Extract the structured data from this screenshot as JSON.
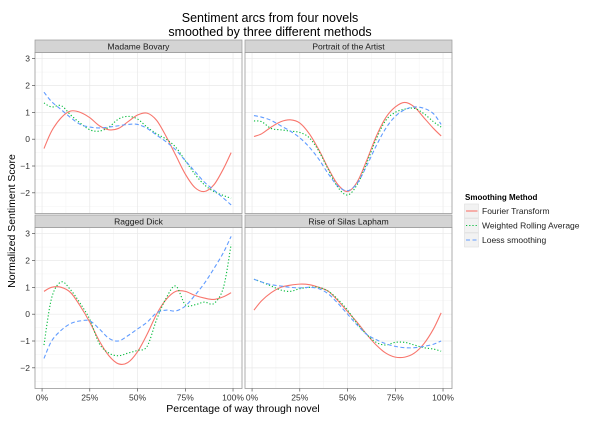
{
  "chart_data": {
    "type": "line",
    "title": [
      "Sentiment arcs from four novels",
      "smoothed by three different methods"
    ],
    "xlabel": "Percentage of way through novel",
    "ylabel": "Normalized Sentiment Score",
    "xlim": [
      -3.7,
      104.7
    ],
    "ylim": [
      -2.77,
      3.23
    ],
    "x_ticks": [
      0,
      25,
      50,
      75,
      100
    ],
    "x_tick_labels": [
      "0%",
      "25%",
      "50%",
      "75%",
      "100%"
    ],
    "y_ticks": [
      -2,
      -1,
      0,
      1,
      2,
      3
    ],
    "y_tick_labels": [
      "−2",
      "−1",
      "0",
      "1",
      "2",
      "3"
    ],
    "grid": true,
    "legend": {
      "title": "Smoothing Method",
      "placement": "right",
      "entries": [
        {
          "name": "Fourier Transform",
          "color": "#F8766D",
          "style": "solid"
        },
        {
          "name": "Weighted Rolling Average",
          "color": "#00BA38",
          "style": "dotted"
        },
        {
          "name": "Loess smoothing",
          "color": "#619CFF",
          "style": "dashed"
        }
      ]
    },
    "x": [
      1,
      5,
      10,
      15,
      20,
      25,
      30,
      35,
      40,
      45,
      50,
      55,
      60,
      65,
      70,
      75,
      80,
      85,
      90,
      95,
      99
    ],
    "panels": [
      {
        "title": "Madame Bovary",
        "series": [
          {
            "name": "Fourier Transform",
            "values": [
              -0.35,
              0.3,
              0.8,
              1.05,
              1.0,
              0.8,
              0.5,
              0.35,
              0.4,
              0.65,
              0.9,
              0.97,
              0.7,
              0.1,
              -0.6,
              -1.3,
              -1.8,
              -1.95,
              -1.7,
              -1.1,
              -0.5
            ]
          },
          {
            "name": "Weighted Rolling Average",
            "values": [
              1.35,
              1.2,
              1.25,
              0.9,
              0.6,
              0.35,
              0.3,
              0.45,
              0.75,
              0.85,
              0.75,
              0.45,
              0.2,
              0.0,
              -0.3,
              -0.8,
              -1.3,
              -1.7,
              -1.95,
              -2.1,
              -2.2
            ]
          },
          {
            "name": "Loess smoothing",
            "values": [
              1.75,
              1.4,
              1.1,
              0.8,
              0.55,
              0.45,
              0.42,
              0.45,
              0.5,
              0.55,
              0.55,
              0.4,
              0.15,
              -0.1,
              -0.4,
              -0.8,
              -1.2,
              -1.6,
              -1.9,
              -2.2,
              -2.45
            ]
          }
        ]
      },
      {
        "title": "Portrait of the Artist",
        "series": [
          {
            "name": "Fourier Transform",
            "values": [
              0.1,
              0.2,
              0.45,
              0.65,
              0.72,
              0.6,
              0.2,
              -0.4,
              -1.1,
              -1.7,
              -1.95,
              -1.6,
              -0.8,
              0.1,
              0.8,
              1.2,
              1.37,
              1.2,
              0.8,
              0.4,
              0.12
            ]
          },
          {
            "name": "Weighted Rolling Average",
            "values": [
              0.68,
              0.65,
              0.4,
              0.35,
              0.3,
              0.25,
              0.05,
              -0.45,
              -1.15,
              -1.8,
              -2.08,
              -1.7,
              -0.9,
              0.0,
              0.7,
              1.0,
              1.12,
              1.15,
              0.95,
              0.65,
              0.45
            ]
          },
          {
            "name": "Loess smoothing",
            "values": [
              0.88,
              0.82,
              0.7,
              0.5,
              0.3,
              0.05,
              -0.3,
              -0.75,
              -1.3,
              -1.75,
              -1.92,
              -1.65,
              -1.0,
              -0.25,
              0.4,
              0.85,
              1.1,
              1.2,
              1.15,
              0.95,
              0.55
            ]
          }
        ]
      },
      {
        "title": "Ragged Dick",
        "series": [
          {
            "name": "Fourier Transform",
            "values": [
              0.85,
              1.0,
              1.0,
              0.8,
              0.3,
              -0.3,
              -1.0,
              -1.55,
              -1.85,
              -1.8,
              -1.4,
              -0.75,
              0.0,
              0.55,
              0.85,
              0.85,
              0.7,
              0.6,
              0.55,
              0.65,
              0.8
            ]
          },
          {
            "name": "Weighted Rolling Average",
            "values": [
              -1.15,
              0.6,
              1.2,
              0.9,
              0.4,
              -0.2,
              -1.1,
              -1.45,
              -1.55,
              -1.45,
              -1.35,
              -1.2,
              -0.2,
              0.6,
              1.05,
              0.35,
              0.35,
              0.45,
              0.4,
              1.0,
              2.6
            ]
          },
          {
            "name": "Loess smoothing",
            "values": [
              -1.65,
              -1.0,
              -0.6,
              -0.35,
              -0.25,
              -0.25,
              -0.55,
              -0.9,
              -1.0,
              -0.8,
              -0.55,
              -0.3,
              0.05,
              0.15,
              0.12,
              0.3,
              0.7,
              1.15,
              1.7,
              2.3,
              2.9
            ]
          }
        ]
      },
      {
        "title": "Rise of Silas Lapham",
        "series": [
          {
            "name": "Fourier Transform",
            "values": [
              0.15,
              0.5,
              0.8,
              1.0,
              1.08,
              1.12,
              1.1,
              1.0,
              0.85,
              0.5,
              0.1,
              -0.3,
              -0.75,
              -1.15,
              -1.45,
              -1.6,
              -1.6,
              -1.45,
              -1.1,
              -0.55,
              0.05
            ]
          },
          {
            "name": "Weighted Rolling Average",
            "values": [
              1.3,
              1.2,
              1.05,
              0.9,
              0.85,
              0.95,
              1.0,
              1.0,
              0.85,
              0.55,
              0.15,
              -0.35,
              -0.75,
              -1.05,
              -1.15,
              -1.05,
              -1.05,
              -1.15,
              -1.25,
              -1.3,
              -1.38
            ]
          },
          {
            "name": "Loess smoothing",
            "values": [
              1.3,
              1.2,
              1.1,
              1.05,
              1.0,
              0.98,
              1.0,
              0.95,
              0.75,
              0.4,
              0.0,
              -0.4,
              -0.75,
              -0.95,
              -1.1,
              -1.2,
              -1.25,
              -1.25,
              -1.2,
              -1.12,
              -1.0
            ]
          }
        ]
      }
    ]
  }
}
